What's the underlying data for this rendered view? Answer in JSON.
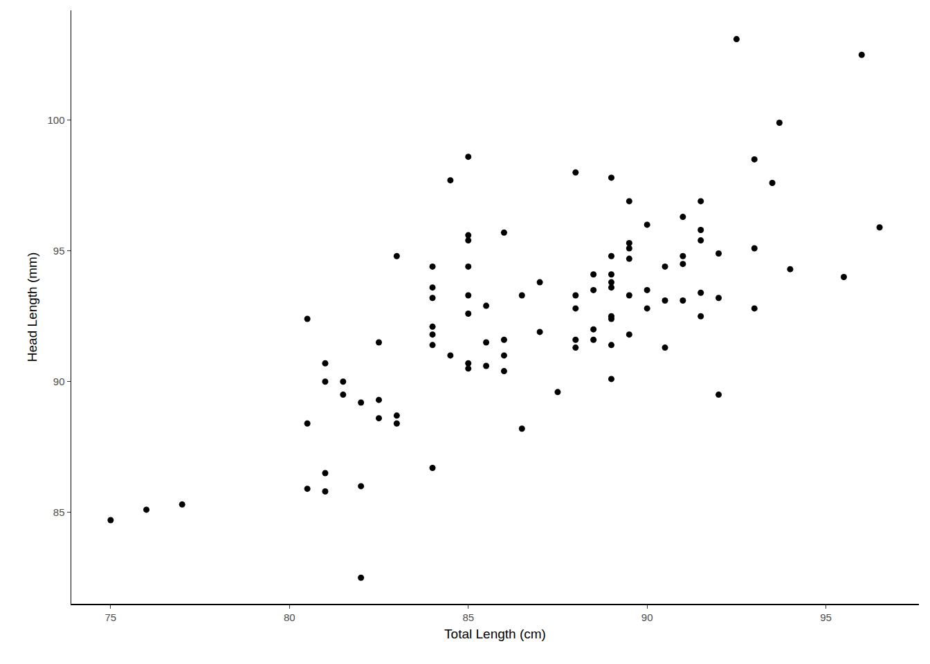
{
  "chart_data": {
    "type": "scatter",
    "x_label": "Total Length (cm)",
    "y_label": "Head Length (mm)",
    "x": [
      75,
      76,
      77,
      80.5,
      80.5,
      80.5,
      81,
      81,
      81,
      81,
      81.5,
      81.5,
      82,
      82,
      82,
      82.5,
      82.5,
      82.5,
      83,
      83,
      83,
      84,
      84,
      84,
      84,
      84,
      84,
      84,
      84.5,
      84.5,
      85,
      85,
      85,
      85,
      85,
      85,
      85,
      85,
      85.5,
      85.5,
      85.5,
      86,
      86,
      86,
      86,
      86.5,
      86.5,
      87,
      87,
      87.5,
      88,
      88,
      88,
      88,
      88,
      88.5,
      88.5,
      88.5,
      88.5,
      89,
      89,
      89,
      89,
      89,
      89,
      89,
      89,
      89,
      89.5,
      89.5,
      89.5,
      89.5,
      89.5,
      89.5,
      90,
      90,
      90,
      90.5,
      90.5,
      90.5,
      91,
      91,
      91,
      91,
      91.5,
      91.5,
      91.5,
      91.5,
      91.5,
      92,
      92,
      92,
      92.5,
      93,
      93,
      93,
      93.5,
      93.7,
      94,
      95.5,
      96,
      96.5
    ],
    "values": [
      84.7,
      85.1,
      85.3,
      92.4,
      88.4,
      85.9,
      90.7,
      90.0,
      86.5,
      85.8,
      90.0,
      89.5,
      89.2,
      86.0,
      82.5,
      91.5,
      89.3,
      88.6,
      94.8,
      88.7,
      88.4,
      94.4,
      93.6,
      93.2,
      92.1,
      91.8,
      91.4,
      86.7,
      97.7,
      91.0,
      98.6,
      95.6,
      95.4,
      94.4,
      93.3,
      92.6,
      90.7,
      90.5,
      92.9,
      91.5,
      90.6,
      95.7,
      91.6,
      91.0,
      90.4,
      93.3,
      88.2,
      93.8,
      91.9,
      89.6,
      98.0,
      93.3,
      92.8,
      91.6,
      91.3,
      94.1,
      93.5,
      92.0,
      91.6,
      97.8,
      94.8,
      94.1,
      93.8,
      93.6,
      92.5,
      92.4,
      91.4,
      90.1,
      96.9,
      95.3,
      95.1,
      94.7,
      93.3,
      91.8,
      96.0,
      93.5,
      92.8,
      94.4,
      93.1,
      91.3,
      96.3,
      94.8,
      94.5,
      93.1,
      96.9,
      95.8,
      95.4,
      93.4,
      92.5,
      94.9,
      93.2,
      89.5,
      103.1,
      98.5,
      95.1,
      92.8,
      97.6,
      99.9,
      94.3,
      94.0,
      102.5,
      95.9
    ],
    "color": "#000000",
    "xlim": [
      73.9,
      97.6
    ],
    "ylim": [
      81.5,
      104.2
    ],
    "xticks": [
      75,
      80,
      85,
      90,
      95
    ],
    "yticks": [
      85,
      90,
      95,
      100
    ],
    "grid": false
  }
}
